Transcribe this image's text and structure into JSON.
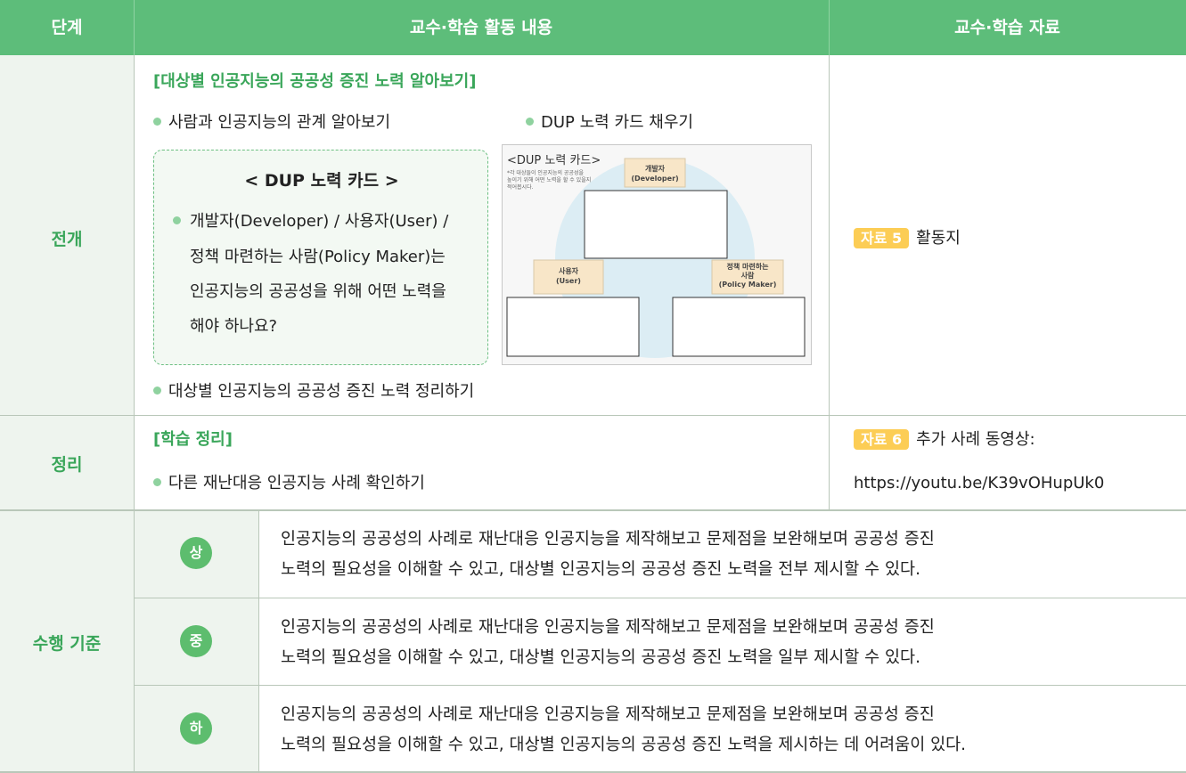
{
  "header": {
    "stage": "단계",
    "activity": "교수·학습 활동 내용",
    "material": "교수·학습 자료"
  },
  "rows": [
    {
      "stage": "전개",
      "heading": "[대상별 인공지능의 공공성 증진 노력 알아보기]",
      "bullets": [
        "사람과 인공지능의 관계 알아보기",
        "DUP 노력 카드 채우기",
        "대상별 인공지능의 공공성 증진 노력 정리하기"
      ],
      "card": {
        "title": "< DUP 노력 카드 >",
        "lines": [
          "개발자(Developer) / 사용자(User) /",
          "정책 마련하는 사람(Policy Maker)는",
          "인공지능의 공공성을 위해 어떤 노력을",
          "해야 하나요?"
        ]
      },
      "image": {
        "title": "<DUP 노력 카드>",
        "note": [
          "*각 대상들이 인공지능의 공공성을",
          "높이기 위해 어떤 노력을 할 수 있을지",
          "적어봅시다."
        ],
        "developer": [
          "개발자",
          "(Developer)"
        ],
        "user": [
          "사용자",
          "(User)"
        ],
        "policy": [
          "정책 마련하는",
          "사람",
          "(Policy Maker)"
        ]
      },
      "material": {
        "badge": "자료 5",
        "text": "활동지"
      }
    },
    {
      "stage": "정리",
      "heading": "[학습 정리]",
      "bullets": [
        "다른 재난대응 인공지능 사례 확인하기"
      ],
      "material": {
        "badge": "자료 6",
        "text": "추가 사례 동영상:",
        "url": "https://youtu.be/K39vOHupUk0"
      }
    }
  ],
  "criteria": {
    "label": "수행 기준",
    "levels": [
      {
        "grade": "상",
        "lines": [
          "인공지능의 공공성의 사례로 재난대응 인공지능을 제작해보고 문제점을 보완해보며 공공성 증진",
          "노력의 필요성을 이해할 수 있고, 대상별 인공지능의 공공성 증진 노력을 전부 제시할 수 있다."
        ]
      },
      {
        "grade": "중",
        "lines": [
          "인공지능의 공공성의 사례로 재난대응 인공지능을 제작해보고 문제점을 보완해보며 공공성 증진",
          "노력의 필요성을 이해할 수 있고, 대상별 인공지능의 공공성 증진 노력을 일부 제시할 수 있다."
        ]
      },
      {
        "grade": "하",
        "lines": [
          "인공지능의 공공성의 사례로 재난대응 인공지능을 제작해보고 문제점을 보완해보며 공공성 증진",
          "노력의 필요성을 이해할 수 있고, 대상별 인공지능의 공공성 증진 노력을 제시하는 데 어려움이 있다."
        ]
      }
    ]
  }
}
